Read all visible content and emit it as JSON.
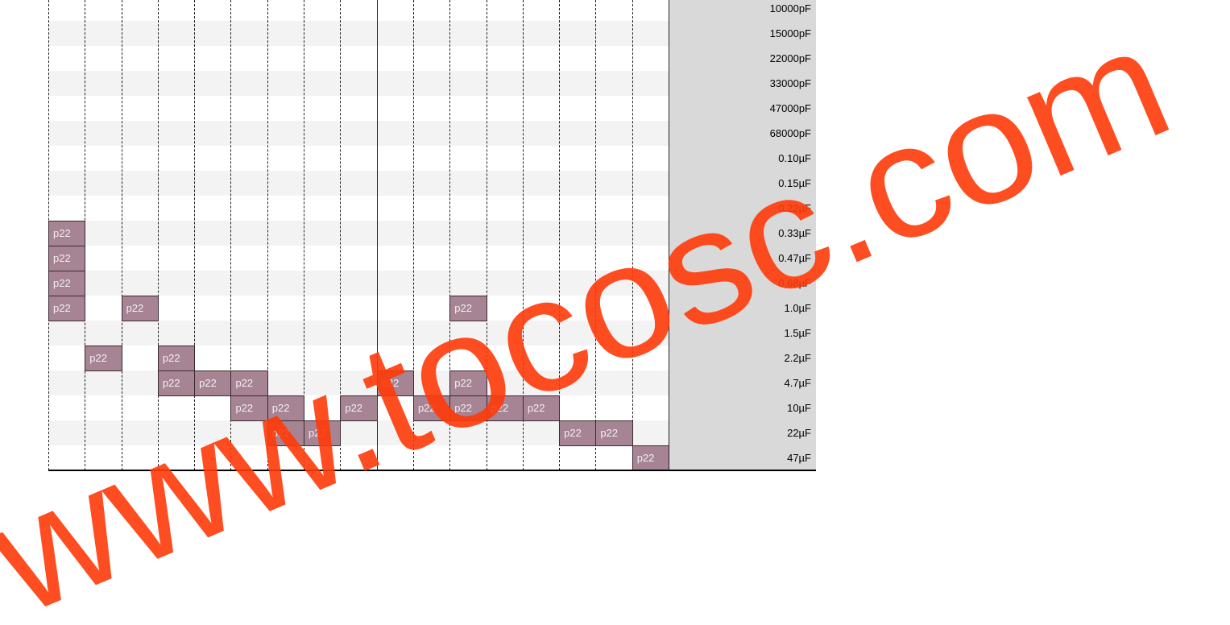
{
  "table": {
    "rows": [
      {
        "label": "10000pF",
        "cells": [
          null,
          null,
          null,
          null,
          null,
          null,
          null,
          null,
          null,
          null,
          null,
          null,
          null,
          null,
          null,
          null,
          null
        ]
      },
      {
        "label": "15000pF",
        "cells": [
          null,
          null,
          null,
          null,
          null,
          null,
          null,
          null,
          null,
          null,
          null,
          null,
          null,
          null,
          null,
          null,
          null
        ]
      },
      {
        "label": "22000pF",
        "cells": [
          null,
          null,
          null,
          null,
          null,
          null,
          null,
          null,
          null,
          null,
          null,
          null,
          null,
          null,
          null,
          null,
          null
        ]
      },
      {
        "label": "33000pF",
        "cells": [
          null,
          null,
          null,
          null,
          null,
          null,
          null,
          null,
          null,
          null,
          null,
          null,
          null,
          null,
          null,
          null,
          null
        ]
      },
      {
        "label": "47000pF",
        "cells": [
          null,
          null,
          null,
          null,
          null,
          null,
          null,
          null,
          null,
          null,
          null,
          null,
          null,
          null,
          null,
          null,
          null
        ]
      },
      {
        "label": "68000pF",
        "cells": [
          null,
          null,
          null,
          null,
          null,
          null,
          null,
          null,
          null,
          null,
          null,
          null,
          null,
          null,
          null,
          null,
          null
        ]
      },
      {
        "label": "0.10µF",
        "cells": [
          null,
          null,
          null,
          null,
          null,
          null,
          null,
          null,
          null,
          null,
          null,
          null,
          null,
          null,
          null,
          null,
          null
        ]
      },
      {
        "label": "0.15µF",
        "cells": [
          null,
          null,
          null,
          null,
          null,
          null,
          null,
          null,
          null,
          null,
          null,
          null,
          null,
          null,
          null,
          null,
          null
        ]
      },
      {
        "label": "0.22µF",
        "cells": [
          null,
          null,
          null,
          null,
          null,
          null,
          null,
          null,
          null,
          null,
          null,
          null,
          null,
          null,
          null,
          null,
          null
        ]
      },
      {
        "label": "0.33µF",
        "cells": [
          "p22",
          null,
          null,
          null,
          null,
          null,
          null,
          null,
          null,
          null,
          null,
          null,
          null,
          null,
          null,
          null,
          null
        ]
      },
      {
        "label": "0.47µF",
        "cells": [
          "p22",
          null,
          null,
          null,
          null,
          null,
          null,
          null,
          null,
          null,
          null,
          null,
          null,
          null,
          null,
          null,
          null
        ]
      },
      {
        "label": "0.68µF",
        "cells": [
          "p22",
          null,
          null,
          null,
          null,
          null,
          null,
          null,
          null,
          null,
          null,
          null,
          null,
          null,
          null,
          null,
          null
        ]
      },
      {
        "label": "1.0µF",
        "cells": [
          "p22",
          null,
          "p22",
          null,
          null,
          null,
          null,
          null,
          null,
          null,
          null,
          "p22",
          null,
          null,
          null,
          null,
          null
        ]
      },
      {
        "label": "1.5µF",
        "cells": [
          null,
          null,
          null,
          null,
          null,
          null,
          null,
          null,
          null,
          null,
          null,
          null,
          null,
          null,
          null,
          null,
          null
        ]
      },
      {
        "label": "2.2µF",
        "cells": [
          null,
          "p22",
          null,
          "p22",
          null,
          null,
          null,
          null,
          null,
          null,
          null,
          null,
          null,
          null,
          null,
          null,
          null
        ]
      },
      {
        "label": "4.7µF",
        "cells": [
          null,
          null,
          null,
          "p22",
          "p22",
          "p22",
          null,
          null,
          null,
          "p22",
          null,
          "p22",
          null,
          null,
          null,
          null,
          null
        ]
      },
      {
        "label": "10µF",
        "cells": [
          null,
          null,
          null,
          null,
          null,
          "p22",
          "p22",
          null,
          "p22",
          null,
          "p22",
          "p22",
          "p22",
          "p22",
          null,
          null,
          null
        ]
      },
      {
        "label": "22µF",
        "cells": [
          null,
          null,
          null,
          null,
          null,
          null,
          "p22",
          "p22",
          null,
          null,
          null,
          null,
          null,
          null,
          "p22",
          "p22",
          null
        ]
      },
      {
        "label": "47µF",
        "cells": [
          null,
          null,
          null,
          null,
          null,
          null,
          null,
          null,
          null,
          null,
          null,
          null,
          null,
          null,
          null,
          null,
          "p22"
        ]
      }
    ]
  },
  "watermark": "www.tocosc.com"
}
